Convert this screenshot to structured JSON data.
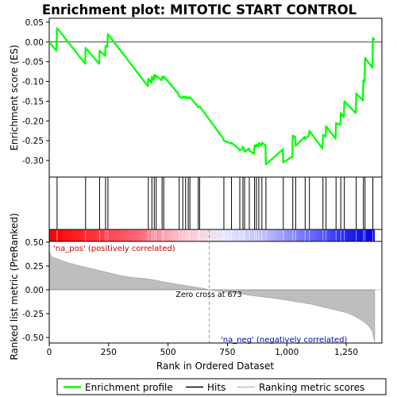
{
  "chart_data": {
    "type": "line",
    "title": "Enrichment plot: MITOTIC START CONTROL",
    "n_genes": 1370,
    "zero_cross_rank": 673,
    "top_panel": {
      "ylabel": "Enrichment score (ES)",
      "ylim": [
        -0.33,
        0.05
      ],
      "yticks": [
        0.05,
        0.0,
        -0.05,
        -0.1,
        -0.15,
        -0.2,
        -0.25,
        -0.3
      ],
      "ytick_labels": [
        "0.05",
        "0.00",
        "-0.05",
        "-0.10",
        "-0.15",
        "-0.20",
        "-0.25",
        "-0.30"
      ],
      "series": [
        {
          "x": [
            0,
            30,
            33,
            151,
            153,
            210,
            212,
            235,
            237,
            244,
            247,
            415,
            417,
            430,
            432,
            440,
            442,
            448,
            450,
            473,
            475,
            480,
            482,
            545,
            547,
            560,
            562,
            572,
            574,
            583,
            585,
            590,
            592,
            625,
            627,
            631,
            633,
            733,
            735,
            765,
            767,
            800,
            802,
            813,
            815,
            820,
            822,
            840,
            842,
            862,
            864,
            870,
            872,
            880,
            882,
            893,
            895,
            910,
            912,
            983,
            985,
            1023,
            1025,
            1035,
            1037,
            1075,
            1077,
            1093,
            1095,
            1150,
            1152,
            1163,
            1165,
            1205,
            1207,
            1225,
            1227,
            1240,
            1242,
            1290,
            1292,
            1320,
            1322,
            1327,
            1329,
            1360,
            1362,
            1370
          ],
          "y": [
            0.0,
            -0.022,
            0.035,
            -0.055,
            -0.015,
            -0.055,
            -0.022,
            -0.035,
            -0.01,
            -0.012,
            0.02,
            -0.112,
            -0.093,
            -0.103,
            -0.088,
            -0.097,
            -0.083,
            -0.09,
            -0.085,
            -0.097,
            -0.088,
            -0.09,
            -0.087,
            -0.132,
            -0.138,
            -0.142,
            -0.138,
            -0.142,
            -0.138,
            -0.143,
            -0.14,
            -0.142,
            -0.14,
            -0.163,
            -0.165,
            -0.164,
            -0.163,
            -0.245,
            -0.25,
            -0.257,
            -0.255,
            -0.272,
            -0.275,
            -0.27,
            -0.265,
            -0.273,
            -0.278,
            -0.27,
            -0.275,
            -0.283,
            -0.262,
            -0.265,
            -0.26,
            -0.265,
            -0.256,
            -0.263,
            -0.255,
            -0.262,
            -0.31,
            -0.272,
            -0.305,
            -0.29,
            -0.237,
            -0.24,
            -0.263,
            -0.24,
            -0.245,
            -0.237,
            -0.225,
            -0.27,
            -0.235,
            -0.24,
            -0.213,
            -0.245,
            -0.205,
            -0.21,
            -0.18,
            -0.19,
            -0.15,
            -0.18,
            -0.13,
            -0.148,
            -0.097,
            -0.1,
            -0.04,
            -0.065,
            0.01,
            0.005
          ]
        }
      ]
    },
    "hits_ranks": [
      33,
      153,
      212,
      237,
      247,
      417,
      432,
      442,
      450,
      475,
      482,
      547,
      562,
      574,
      585,
      592,
      627,
      633,
      735,
      767,
      802,
      815,
      822,
      842,
      864,
      872,
      882,
      895,
      912,
      985,
      1025,
      1037,
      1077,
      1095,
      1152,
      1165,
      1207,
      1227,
      1242,
      1292,
      1322,
      1329,
      1362
    ],
    "bottom_panel": {
      "ylabel": "Ranked list metric (PreRanked)",
      "xlabel": "Rank in Ordered Dataset",
      "ylim": [
        -0.57,
        0.6
      ],
      "yticks": [
        0.5,
        0.25,
        0.0,
        -0.25,
        -0.5
      ],
      "ytick_labels": [
        "0.50",
        "0.25",
        "0.00",
        "-0.25",
        "-0.50"
      ],
      "xlim": [
        0,
        1370
      ],
      "xticks": [
        0,
        250,
        500,
        750,
        1000,
        1250
      ],
      "xtick_labels": [
        "0",
        "250",
        "500",
        "750",
        "1,000",
        "1,250"
      ],
      "metric_profile": {
        "rank": [
          0,
          5,
          15,
          30,
          60,
          100,
          150,
          200,
          250,
          300,
          350,
          400,
          450,
          500,
          550,
          600,
          650,
          673,
          700,
          750,
          800,
          850,
          900,
          950,
          1000,
          1050,
          1100,
          1150,
          1200,
          1250,
          1280,
          1300,
          1320,
          1340,
          1350,
          1360,
          1365,
          1370
        ],
        "value": [
          0.42,
          0.37,
          0.34,
          0.33,
          0.3,
          0.27,
          0.24,
          0.21,
          0.18,
          0.15,
          0.13,
          0.12,
          0.1,
          0.075,
          0.055,
          0.035,
          0.015,
          0.0,
          -0.01,
          -0.025,
          -0.04,
          -0.06,
          -0.075,
          -0.09,
          -0.11,
          -0.13,
          -0.15,
          -0.18,
          -0.21,
          -0.24,
          -0.27,
          -0.3,
          -0.33,
          -0.37,
          -0.4,
          -0.44,
          -0.5,
          -0.55
        ]
      },
      "annotations": {
        "pos_label": "'na_pos' (positively correlated)",
        "neg_label": "'na_neg' (negatively correlated)",
        "zero_cross_label": "Zero cross at 673"
      }
    },
    "legend": {
      "placement": "bottom",
      "entries": [
        {
          "label": "Enrichment profile",
          "color": "#00ff00"
        },
        {
          "label": "Hits",
          "color": "#000000"
        },
        {
          "label": "Ranking metric scores",
          "color": "#bebebe"
        }
      ]
    },
    "colors": {
      "es_line": "#00ff00",
      "metric_fill": "#bebebe",
      "pos_label": "#cc0000",
      "neg_label": "#0000cc",
      "bar_red": "#ff0000",
      "bar_blue": "#0000ff"
    }
  }
}
